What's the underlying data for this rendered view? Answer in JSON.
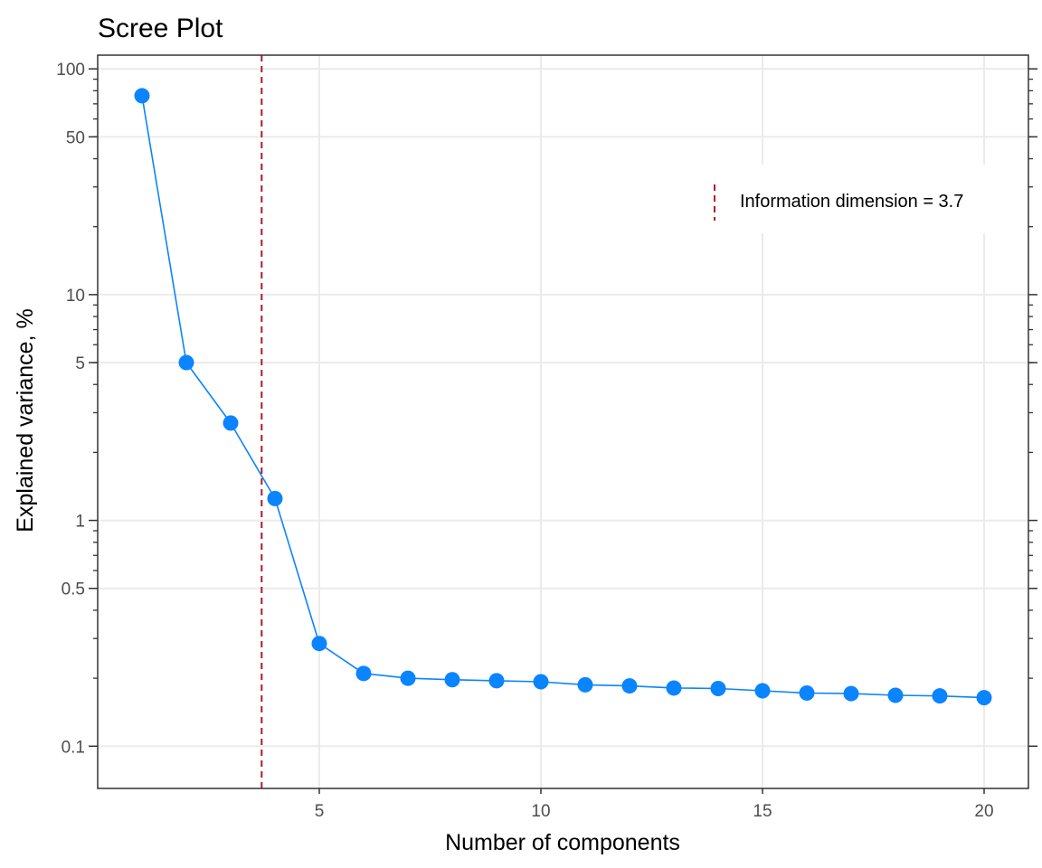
{
  "chart_data": {
    "type": "line",
    "title": "Scree Plot",
    "xlabel": "Number of components",
    "ylabel": "Explained variance, %",
    "y_scale": "log",
    "xlim": [
      0,
      21
    ],
    "ylim": [
      0.065,
      115
    ],
    "x_ticks": [
      5,
      10,
      15,
      20
    ],
    "x_tick_labels": [
      "5",
      "10",
      "15",
      "20"
    ],
    "y_ticks": [
      0.1,
      0.5,
      1,
      5,
      10,
      50,
      100
    ],
    "y_tick_labels": [
      "0.1",
      "0.5",
      "1",
      "5",
      "10",
      "50",
      "100"
    ],
    "grid": true,
    "series": [
      {
        "color": "#0a84ff",
        "x": [
          1,
          2,
          3,
          4,
          5,
          6,
          7,
          8,
          9,
          10,
          11,
          12,
          13,
          14,
          15,
          16,
          17,
          18,
          19,
          20
        ],
        "values": [
          76,
          5.0,
          2.7,
          1.25,
          0.285,
          0.21,
          0.2,
          0.197,
          0.195,
          0.193,
          0.187,
          0.185,
          0.181,
          0.18,
          0.176,
          0.172,
          0.171,
          0.168,
          0.167,
          0.164
        ]
      }
    ],
    "reference_line": {
      "x": 3.7,
      "orientation": "vertical",
      "style": "dashed",
      "color": "#b2182b",
      "label": "Information dimension = 3.7"
    },
    "legend": {
      "position": "top-right",
      "entries": [
        "Information dimension = 3.7"
      ]
    }
  }
}
